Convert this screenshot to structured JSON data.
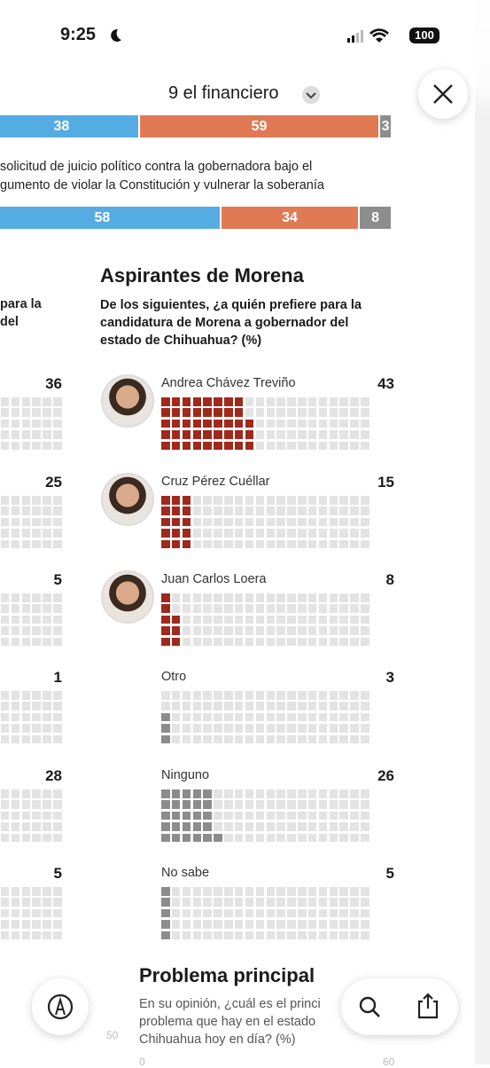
{
  "status_bar": {
    "time": "9:25",
    "battery": "100"
  },
  "header": {
    "title": "9 el financiero"
  },
  "stacked_bars": [
    {
      "values": [
        38,
        59,
        3
      ]
    },
    {
      "text": [
        "solicitud de juicio político contra la gobernadora bajo el",
        "gumento de violar la Constitución y vulnerar la soberanía"
      ],
      "values": [
        58,
        34,
        8
      ]
    }
  ],
  "left_column": {
    "text": [
      "para la",
      "del"
    ],
    "values": [
      36,
      25,
      5,
      1,
      28,
      5
    ]
  },
  "morena": {
    "title": "Aspirantes de Morena",
    "question": [
      "De los siguientes, ¿a quién prefiere para la",
      "candidatura de Morena a gobernador del",
      "estado de Chihuahua? (%)"
    ],
    "options": [
      {
        "name": "Andrea Chávez Treviño",
        "value": 43
      },
      {
        "name": "Cruz Pérez Cuéllar",
        "value": 15
      },
      {
        "name": "Juan Carlos Loera",
        "value": 8
      },
      {
        "name": "Otro",
        "value": 3
      },
      {
        "name": "Ninguno",
        "value": 26
      },
      {
        "name": "No sabe",
        "value": 5
      }
    ]
  },
  "problema": {
    "title": "Problema principal",
    "question": [
      "En su opinión, ¿cuál es el princi",
      "problema que hay en el estado",
      "Chihuahua hoy en día? (%)"
    ],
    "axis_labels": [
      50,
      0,
      60
    ]
  }
}
